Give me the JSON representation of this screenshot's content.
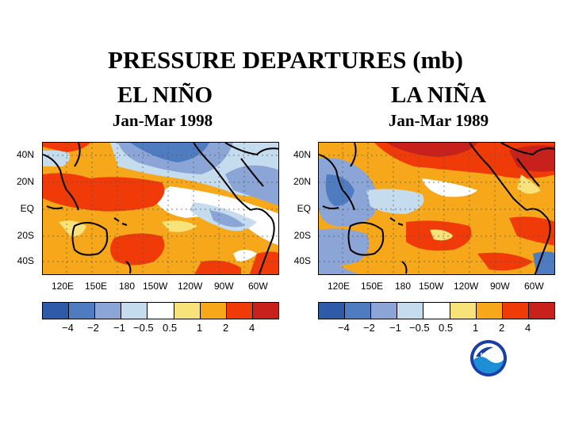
{
  "title": "PRESSURE DEPARTURES (mb)",
  "panels": [
    {
      "name": "EL NIÑO",
      "period": "Jan-Mar 1998"
    },
    {
      "name": "LA NIÑA",
      "period": "Jan-Mar 1989"
    }
  ],
  "lat_labels": [
    "40N",
    "20N",
    "EQ",
    "20S",
    "40S"
  ],
  "lon_labels": [
    "120E",
    "150E",
    "180",
    "150W",
    "120W",
    "90W",
    "60W"
  ],
  "colorbar": {
    "colors": [
      "#2f5aa8",
      "#4f7cc0",
      "#8ba6d6",
      "#c4dcee",
      "#ffffff",
      "#f8e27a",
      "#f6a81a",
      "#f03a08",
      "#c8201b"
    ],
    "labels": [
      "−4",
      "−2",
      "−1",
      "−0.5",
      "0.5",
      "1",
      "2",
      "4"
    ]
  },
  "logo": {
    "text": "NOAA"
  }
}
